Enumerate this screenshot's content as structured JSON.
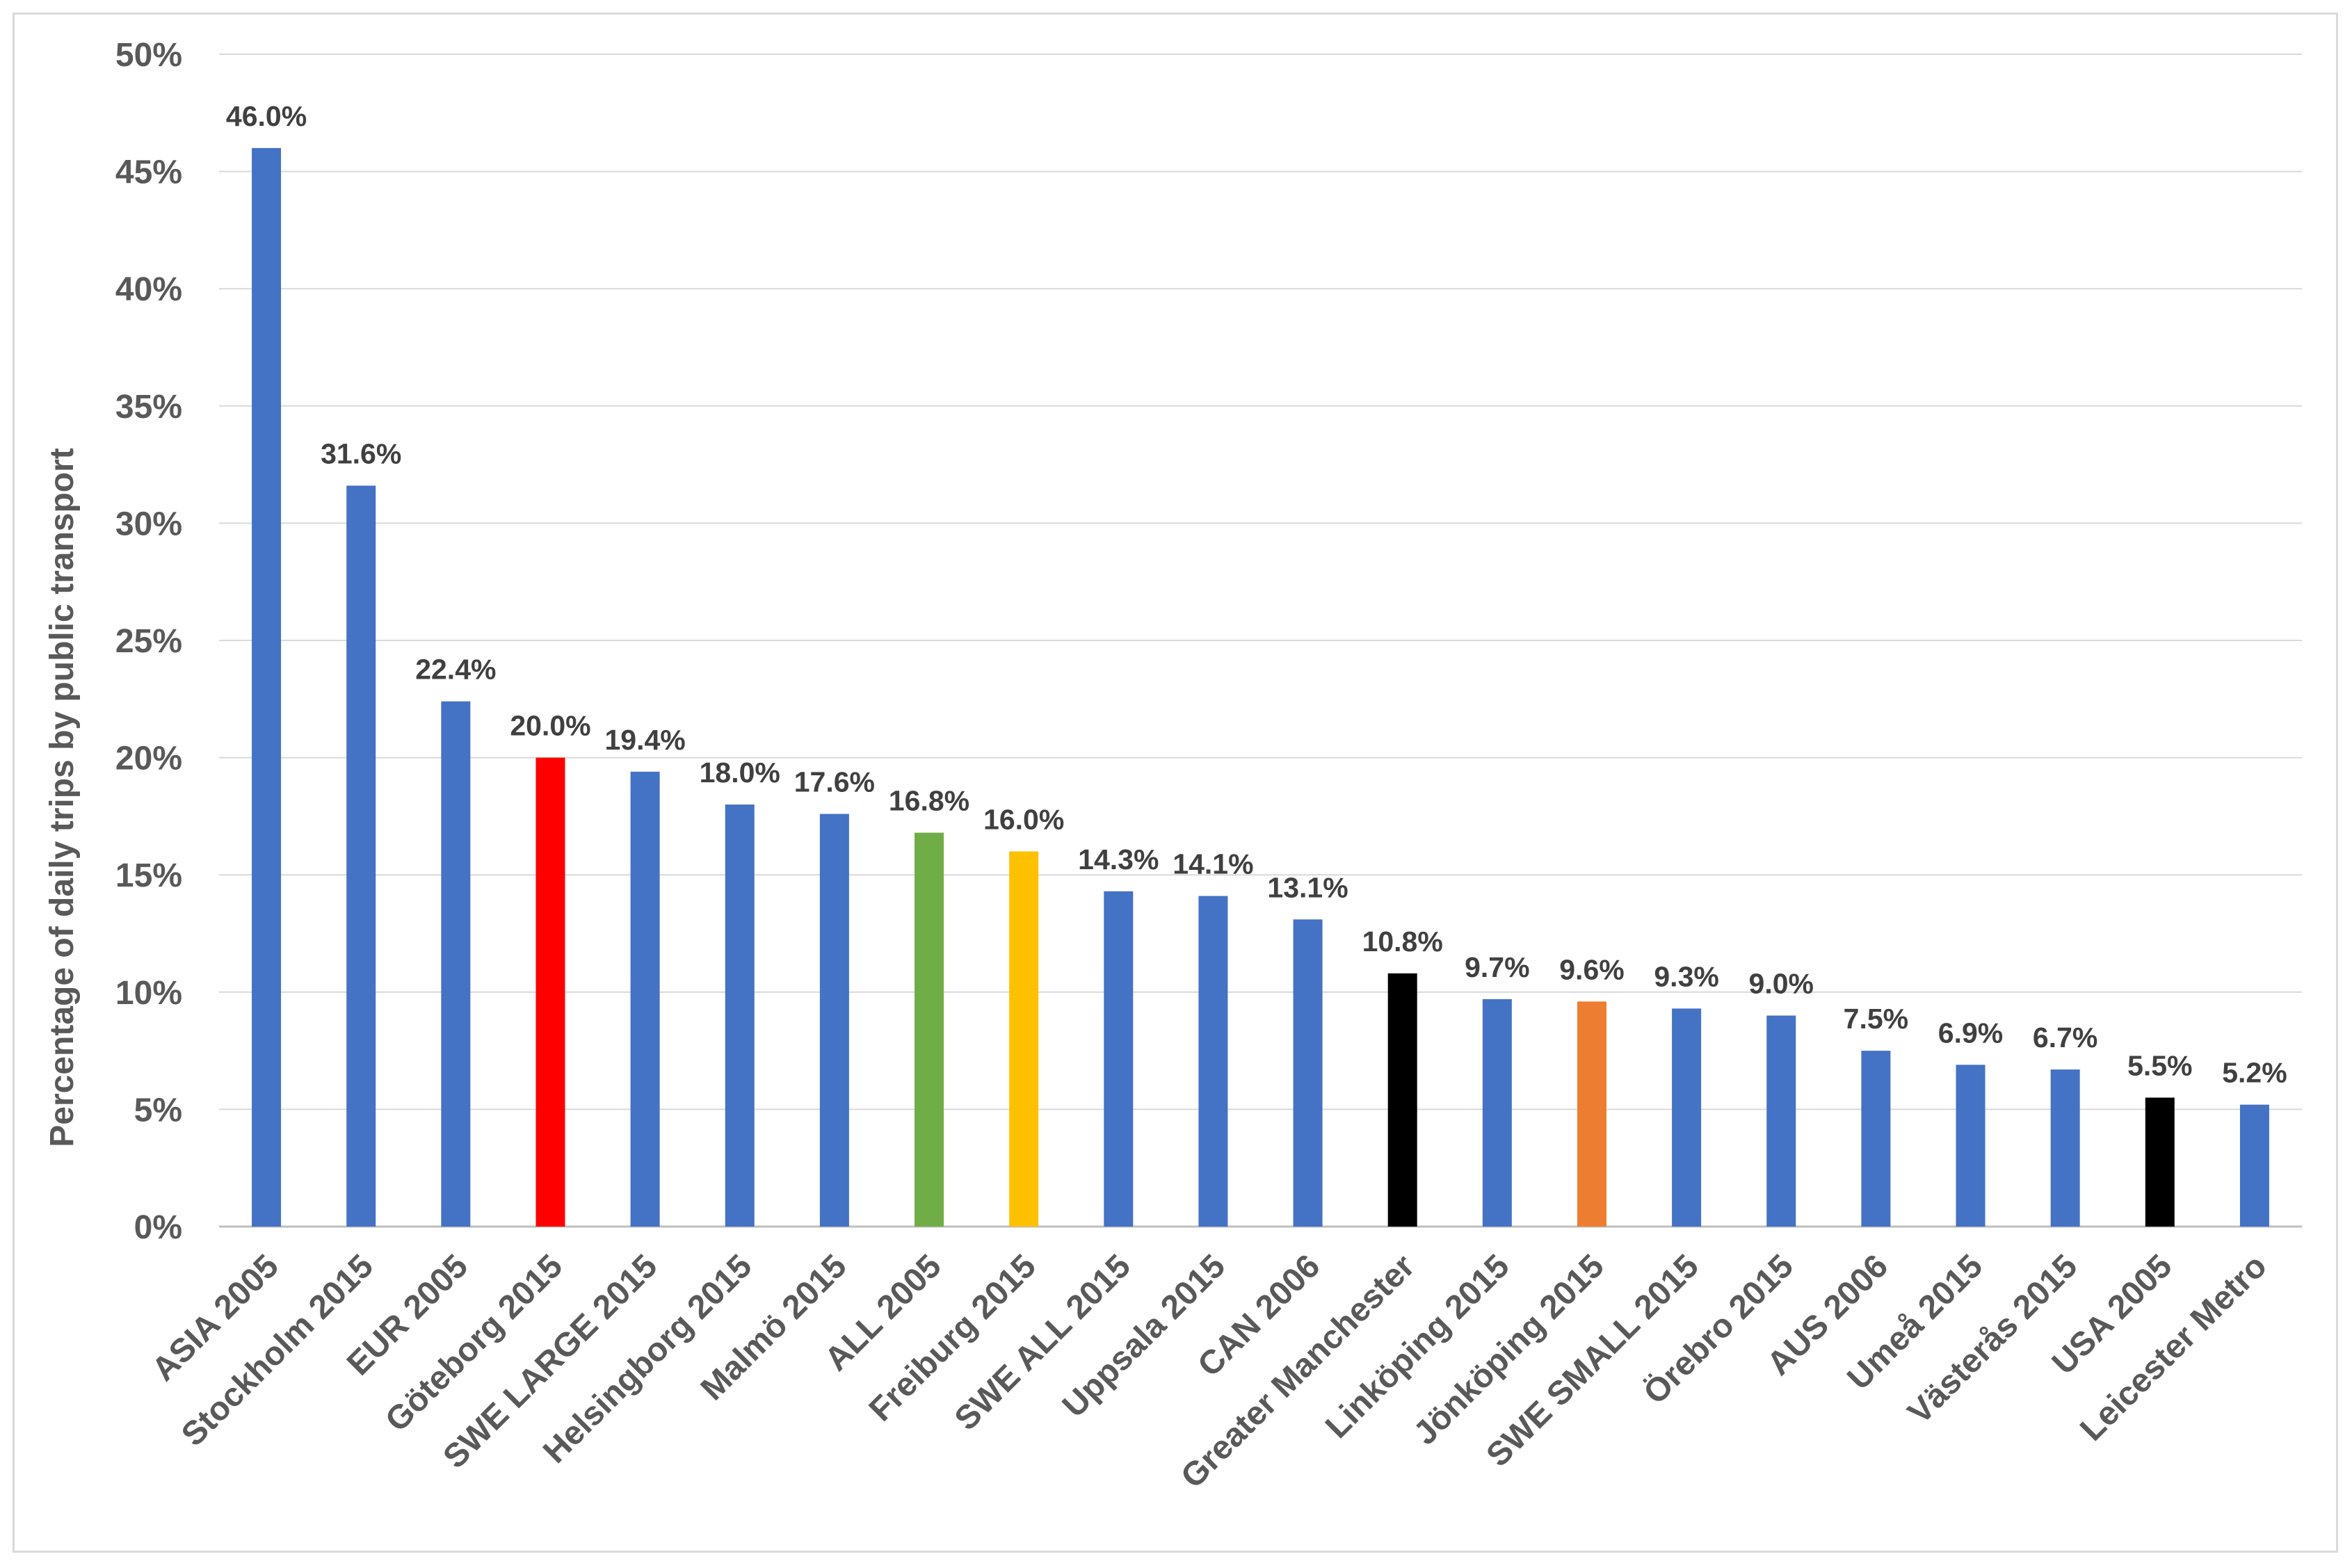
{
  "chart_data": {
    "type": "bar",
    "title": "",
    "xlabel": "",
    "ylabel": "Percentage of daily trips by public transport",
    "ylim": [
      0,
      50
    ],
    "y_ticks": [
      {
        "value": 0,
        "label": "0%"
      },
      {
        "value": 5,
        "label": "5%"
      },
      {
        "value": 10,
        "label": "10%"
      },
      {
        "value": 15,
        "label": "15%"
      },
      {
        "value": 20,
        "label": "20%"
      },
      {
        "value": 25,
        "label": "25%"
      },
      {
        "value": 30,
        "label": "30%"
      },
      {
        "value": 35,
        "label": "35%"
      },
      {
        "value": 40,
        "label": "40%"
      },
      {
        "value": 45,
        "label": "45%"
      },
      {
        "value": 50,
        "label": "50%"
      }
    ],
    "grid": true,
    "legend": "none",
    "categories": [
      "ASIA 2005",
      "Stockholm 2015",
      "EUR 2005",
      "Göteborg 2015",
      "SWE LARGE 2015",
      "Helsingborg 2015",
      "Malmö 2015",
      "ALL 2005",
      "Freiburg 2015",
      "SWE ALL 2015",
      "Uppsala 2015",
      "CAN 2006",
      "Greater Manchester",
      "Linköping 2015",
      "Jönköping 2015",
      "SWE SMALL 2015",
      "Örebro 2015",
      "AUS 2006",
      "Umeå 2015",
      "Västerås 2015",
      "USA 2005",
      "Leicester Metro"
    ],
    "values": [
      46.0,
      31.6,
      22.4,
      20.0,
      19.4,
      18.0,
      17.6,
      16.8,
      16.0,
      14.3,
      14.1,
      13.1,
      10.8,
      9.7,
      9.6,
      9.3,
      9.0,
      7.5,
      6.9,
      6.7,
      5.5,
      5.2
    ],
    "value_labels": [
      "46.0%",
      "31.6%",
      "22.4%",
      "20.0%",
      "19.4%",
      "18.0%",
      "17.6%",
      "16.8%",
      "16.0%",
      "14.3%",
      "14.1%",
      "13.1%",
      "10.8%",
      "9.7%",
      "9.6%",
      "9.3%",
      "9.0%",
      "7.5%",
      "6.9%",
      "6.7%",
      "5.5%",
      "5.2%"
    ],
    "bar_colors": [
      "#4472c4",
      "#4472c4",
      "#4472c4",
      "#ff0000",
      "#4472c4",
      "#4472c4",
      "#4472c4",
      "#70ad47",
      "#ffc000",
      "#4472c4",
      "#4472c4",
      "#4472c4",
      "#000000",
      "#4472c4",
      "#ed7d31",
      "#4472c4",
      "#4472c4",
      "#4472c4",
      "#4472c4",
      "#4472c4",
      "#000000",
      "#4472c4"
    ]
  }
}
